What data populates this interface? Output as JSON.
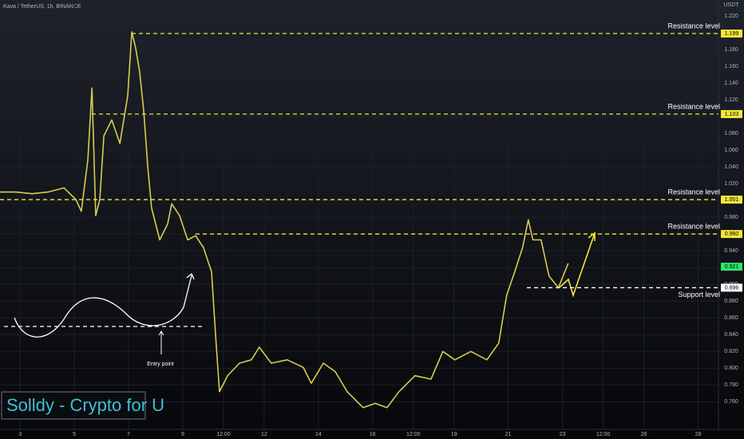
{
  "chart_data": {
    "type": "line",
    "title": "Kava / TetherUS, 1h, BINANCE",
    "y_unit": "USDT",
    "watermark": "Solldy - Crypto for U",
    "annotation": "Entry point",
    "xlim": [
      2.26,
      28.75
    ],
    "ylim": [
      0.727,
      1.239
    ],
    "xticks": [
      3,
      5,
      7,
      9,
      {
        "value": 10.5,
        "label": "12:00"
      },
      12,
      14,
      16,
      {
        "value": 17.5,
        "label": "12:00"
      },
      19,
      21,
      23,
      {
        "value": 24.5,
        "label": "12:00"
      },
      26,
      28
    ],
    "yticks": [
      {
        "value": 0.76,
        "label": "0.760"
      },
      {
        "value": 0.78,
        "label": "0.780"
      },
      {
        "value": 0.8,
        "label": "0.800"
      },
      {
        "value": 0.82,
        "label": "0.820"
      },
      {
        "value": 0.84,
        "label": "0.840"
      },
      {
        "value": 0.86,
        "label": "0.860"
      },
      {
        "value": 0.88,
        "label": "0.880"
      },
      {
        "value": 0.9,
        "label": "0.900"
      },
      {
        "value": 0.92,
        "label": "0.920"
      },
      {
        "value": 0.94,
        "label": "0.940"
      },
      {
        "value": 0.96,
        "label": "0.960"
      },
      {
        "value": 0.98,
        "label": "0.980"
      },
      {
        "value": 1.0,
        "label": "1.000"
      },
      {
        "value": 1.02,
        "label": "1.020"
      },
      {
        "value": 1.04,
        "label": "1.040"
      },
      {
        "value": 1.06,
        "label": "1.060"
      },
      {
        "value": 1.08,
        "label": "1.080"
      },
      {
        "value": 1.1,
        "label": "1.100"
      },
      {
        "value": 1.12,
        "label": "1.120"
      },
      {
        "value": 1.14,
        "label": "1.140"
      },
      {
        "value": 1.16,
        "label": "1.160"
      },
      {
        "value": 1.18,
        "label": "1.180"
      },
      {
        "value": 1.2,
        "label": "1.200"
      },
      {
        "value": 1.22,
        "label": "1.220"
      }
    ],
    "grid": true,
    "x": [
      2.26,
      2.85,
      3.44,
      4.03,
      4.62,
      5.06,
      5.26,
      5.5,
      5.65,
      5.79,
      5.94,
      6.09,
      6.38,
      6.68,
      6.97,
      7.12,
      7.26,
      7.41,
      7.56,
      7.71,
      7.85,
      8.15,
      8.44,
      8.59,
      8.88,
      9.18,
      9.47,
      9.76,
      10.06,
      10.21,
      10.35,
      10.65,
      11.09,
      11.53,
      11.82,
      12.26,
      12.85,
      13.44,
      13.74,
      14.18,
      14.62,
      15.06,
      15.65,
      16.09,
      16.53,
      16.97,
      17.56,
      18.15,
      18.59,
      19.03,
      19.62,
      20.21,
      20.65,
      20.94,
      21.24,
      21.53,
      21.74,
      21.91,
      22.21,
      22.5,
      22.85,
      23.21
    ],
    "series": [
      {
        "name": "KAVAUSDT",
        "color": "#d8cc4e",
        "values": [
          1.01,
          1.01,
          1.008,
          1.01,
          1.015,
          1.001,
          0.987,
          1.049,
          1.134,
          0.982,
          1.001,
          1.077,
          1.096,
          1.068,
          1.125,
          1.201,
          1.182,
          1.153,
          1.106,
          1.039,
          0.991,
          0.953,
          0.972,
          0.996,
          0.982,
          0.953,
          0.958,
          0.944,
          0.915,
          0.839,
          0.772,
          0.791,
          0.806,
          0.81,
          0.825,
          0.806,
          0.81,
          0.801,
          0.782,
          0.806,
          0.796,
          0.772,
          0.753,
          0.758,
          0.753,
          0.772,
          0.791,
          0.787,
          0.82,
          0.81,
          0.82,
          0.81,
          0.83,
          0.887,
          0.915,
          0.944,
          0.977,
          0.953,
          0.953,
          0.91,
          0.896,
          0.925
        ]
      }
    ],
    "levels": [
      {
        "name": "Resistance level",
        "value": 1.199,
        "value_label": "1.199",
        "color": "#f5e63c"
      },
      {
        "name": "Resistance level",
        "value": 1.103,
        "value_label": "1.103",
        "color": "#f5e63c"
      },
      {
        "name": "Resistance level",
        "value": 1.001,
        "value_label": "1.001",
        "color": "#f5e63c"
      },
      {
        "name": "Resistance level",
        "value": 0.96,
        "value_label": "0.960",
        "color": "#f5e63c"
      },
      {
        "name": "Support level",
        "value": 0.896,
        "value_label": "0.896",
        "color": "#ffffff"
      }
    ],
    "last_price": 0.921,
    "last_price_color": "#2ee66b"
  }
}
